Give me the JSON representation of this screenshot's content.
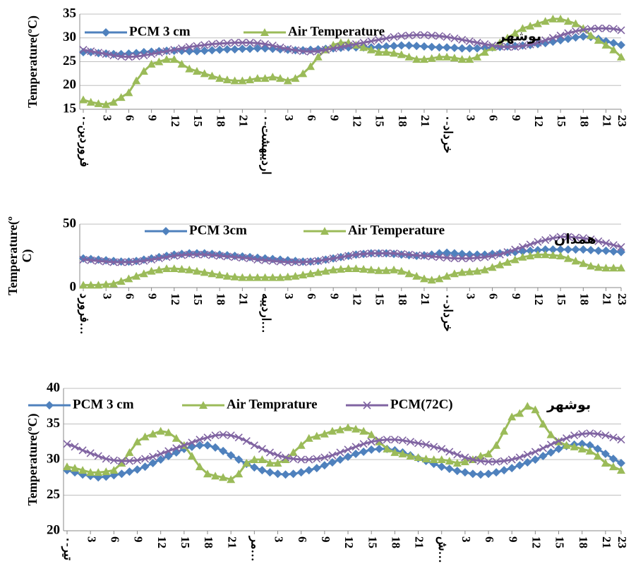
{
  "chart_data": [
    {
      "type": "line",
      "y_label": [
        "Temperature(ºC)"
      ],
      "annotation": "بوشهر",
      "ylim": [
        15,
        35
      ],
      "yticks": [
        15,
        20,
        25,
        30,
        35
      ],
      "grid": true,
      "categories": [
        "فروردین-۰",
        null,
        null,
        "3",
        null,
        null,
        "6",
        null,
        null,
        "9",
        null,
        null,
        "12",
        null,
        null,
        "15",
        null,
        null,
        "18",
        null,
        null,
        "21",
        null,
        null,
        "اردیبهشت-۰",
        null,
        null,
        "3",
        null,
        null,
        "6",
        null,
        null,
        "9",
        null,
        null,
        "12",
        null,
        null,
        "15",
        null,
        null,
        "18",
        null,
        null,
        "21",
        null,
        null,
        "خرداد-۰",
        null,
        null,
        "3",
        null,
        null,
        "6",
        null,
        null,
        "9",
        null,
        null,
        "12",
        null,
        null,
        "15",
        null,
        null,
        "18",
        null,
        null,
        "21",
        null,
        "23"
      ],
      "series": [
        {
          "name": "PCM 3 cm",
          "color": "#4f81bd",
          "marker": "diamond",
          "values": [
            27,
            27,
            26.8,
            26.7,
            26.6,
            26.6,
            26.7,
            26.8,
            27,
            27.1,
            27.2,
            27.3,
            27.3,
            27.3,
            27.2,
            27.2,
            27.3,
            27.4,
            27.5,
            27.6,
            27.6,
            27.7,
            27.7,
            27.8,
            27.8,
            27.7,
            27.6,
            27.5,
            27.4,
            27.4,
            27.5,
            27.6,
            27.7,
            27.8,
            27.9,
            28,
            28,
            28,
            28,
            28.1,
            28.2,
            28.3,
            28.4,
            28.4,
            28.3,
            28.2,
            28.1,
            28,
            28,
            27.9,
            27.8,
            27.8,
            27.8,
            27.9,
            28,
            28.1,
            28.2,
            28.3,
            28.4,
            28.5,
            28.7,
            28.9,
            29.2,
            29.5,
            29.8,
            30.1,
            30.3,
            30.2,
            29.8,
            29.3,
            28.9,
            28.5
          ]
        },
        {
          "name": "Air Temperature",
          "color": "#9bbb59",
          "marker": "triangle",
          "values": [
            17,
            16.5,
            16.2,
            16,
            16.5,
            17.5,
            18.5,
            21,
            23,
            24.5,
            25,
            25.5,
            25.5,
            24.5,
            23.5,
            23,
            22.5,
            22,
            21.5,
            21.2,
            21,
            21,
            21.2,
            21.5,
            21.5,
            21.8,
            21.5,
            21,
            21.5,
            22.5,
            24,
            26,
            27.5,
            28.5,
            29,
            29,
            28.5,
            28,
            27.5,
            27,
            27,
            26.8,
            26.5,
            26,
            25.5,
            25.5,
            25.7,
            26,
            26,
            25.8,
            25.5,
            25.5,
            26,
            27,
            28,
            29,
            30,
            31,
            32,
            32.5,
            33,
            33.5,
            34,
            34,
            33.5,
            33,
            32,
            30.5,
            29.5,
            28.5,
            27.5,
            26
          ]
        },
        {
          "color": "#8064a2",
          "marker": "x",
          "values": [
            27.5,
            27.2,
            26.9,
            26.6,
            26.3,
            26.1,
            26,
            26.1,
            26.3,
            26.6,
            26.9,
            27.2,
            27.5,
            27.8,
            28.1,
            28.3,
            28.5,
            28.7,
            28.8,
            28.9,
            29,
            29,
            29,
            28.9,
            28.7,
            28.4,
            28,
            27.7,
            27.4,
            27.2,
            27.1,
            27.2,
            27.5,
            27.8,
            28.1,
            28.4,
            28.7,
            29,
            29.3,
            29.6,
            29.9,
            30.2,
            30.4,
            30.5,
            30.6,
            30.6,
            30.5,
            30.4,
            30.2,
            29.9,
            29.6,
            29.3,
            29,
            28.7,
            28.4,
            28.2,
            28.1,
            28.1,
            28.3,
            28.6,
            29,
            29.5,
            30,
            30.5,
            31,
            31.4,
            31.7,
            31.9,
            32,
            32,
            31.9,
            31.6
          ]
        }
      ]
    },
    {
      "type": "line",
      "y_label": [
        "Temperature(º",
        "C)"
      ],
      "annotation": "همدان",
      "ylim": [
        0,
        50
      ],
      "yticks": [
        0,
        50
      ],
      "grid": true,
      "categories": [
        "فرورد…",
        null,
        null,
        "3",
        null,
        null,
        "6",
        null,
        null,
        "9",
        null,
        null,
        "12",
        null,
        null,
        "15",
        null,
        null,
        "18",
        null,
        null,
        "21",
        null,
        null,
        "اردیبه…",
        null,
        null,
        "3",
        null,
        null,
        "6",
        null,
        null,
        "9",
        null,
        null,
        "12",
        null,
        null,
        "15",
        null,
        null,
        "18",
        null,
        null,
        "21",
        null,
        null,
        "خرداد-۰",
        null,
        null,
        "3",
        null,
        null,
        "6",
        null,
        null,
        "9",
        null,
        null,
        "12",
        null,
        null,
        "15",
        null,
        null,
        "18",
        null,
        null,
        "21",
        null,
        "23"
      ],
      "series": [
        {
          "name": "PCM 3cm",
          "color": "#4f81bd",
          "marker": "diamond",
          "values": [
            23,
            22.5,
            22,
            21.5,
            21,
            20.5,
            20.5,
            21,
            22,
            23,
            24,
            25,
            26,
            26.5,
            27,
            27,
            27,
            26.5,
            26,
            25.5,
            25,
            24.5,
            24,
            23.5,
            23,
            22.5,
            22,
            21.5,
            21,
            20.5,
            20.5,
            21,
            22,
            23,
            24,
            25,
            26,
            26.5,
            27,
            27,
            27,
            26.5,
            26,
            25.5,
            25,
            25.5,
            26,
            27,
            27.5,
            27,
            26.5,
            26,
            26,
            26,
            26.5,
            27,
            27.5,
            28,
            28.5,
            29,
            29.5,
            30,
            30,
            30,
            30,
            30,
            30,
            29.5,
            29,
            29,
            28.5,
            28
          ]
        },
        {
          "name": "Air Temperature",
          "color": "#9bbb59",
          "marker": "triangle",
          "values": [
            2,
            2,
            2,
            2.5,
            3,
            5,
            7,
            9,
            11,
            13,
            14,
            15,
            15,
            14.5,
            14,
            13,
            12,
            11,
            10,
            9,
            8.5,
            8,
            8,
            8,
            8,
            8,
            8,
            8.5,
            9,
            10,
            11,
            12,
            13,
            14,
            14.5,
            15,
            15,
            14.5,
            14,
            13.5,
            13.5,
            14,
            13,
            11,
            9,
            7,
            6,
            7,
            9,
            11,
            12,
            12.5,
            13,
            14,
            16,
            18,
            20,
            22,
            24,
            25,
            26,
            26,
            25.5,
            25,
            23,
            21,
            19,
            17,
            16,
            15.5,
            15.5,
            15.5
          ]
        },
        {
          "color": "#8064a2",
          "marker": "x",
          "values": [
            22,
            21.5,
            21,
            20.5,
            20,
            20,
            20,
            20.5,
            21,
            22,
            23,
            24,
            25,
            25.5,
            26,
            26,
            26,
            25.5,
            25,
            24.5,
            24,
            23.5,
            23,
            22,
            21.5,
            21,
            20.5,
            20,
            20,
            20,
            20.5,
            21,
            22,
            23,
            24,
            25,
            26,
            26.5,
            27,
            27,
            27,
            27,
            26.5,
            26,
            25.5,
            25,
            24.5,
            24,
            23.5,
            23,
            23,
            23,
            23.5,
            24,
            25,
            26,
            28,
            30,
            32,
            34,
            36,
            37.5,
            39,
            40,
            40,
            39.5,
            39,
            38,
            36.5,
            35,
            33.5,
            32
          ]
        }
      ]
    },
    {
      "type": "line",
      "y_label": [
        "Temperature(ºC)"
      ],
      "annotation": "بوشهر",
      "ylim": [
        20,
        40
      ],
      "yticks": [
        20,
        25,
        30,
        35,
        40
      ],
      "grid": true,
      "categories": [
        "تیر-۰",
        null,
        null,
        "3",
        null,
        null,
        "6",
        null,
        null,
        "9",
        null,
        null,
        "12",
        null,
        null,
        "15",
        null,
        null,
        "18",
        null,
        null,
        "21",
        null,
        null,
        "مر…",
        null,
        null,
        "3",
        null,
        null,
        "6",
        null,
        null,
        "9",
        null,
        null,
        "12",
        null,
        null,
        "15",
        null,
        null,
        "18",
        null,
        null,
        "21",
        null,
        null,
        "ش…",
        null,
        null,
        "3",
        null,
        null,
        "6",
        null,
        null,
        "9",
        null,
        null,
        "12",
        null,
        null,
        "15",
        null,
        null,
        "18",
        null,
        null,
        "21",
        null,
        "23"
      ],
      "series": [
        {
          "name": "PCM 3 cm",
          "color": "#4f81bd",
          "marker": "diamond",
          "values": [
            28.5,
            28.2,
            27.9,
            27.7,
            27.5,
            27.6,
            27.8,
            28,
            28.3,
            28.6,
            29,
            29.5,
            30,
            30.5,
            31,
            31.5,
            31.8,
            32,
            32,
            31.7,
            31.2,
            30.6,
            30,
            29.4,
            28.9,
            28.5,
            28.2,
            28,
            27.9,
            28,
            28.2,
            28.5,
            28.8,
            29.2,
            29.6,
            30,
            30.4,
            30.8,
            31.1,
            31.4,
            31.5,
            31.5,
            31.3,
            31,
            30.6,
            30.2,
            29.8,
            29.4,
            29,
            28.7,
            28.4,
            28.2,
            28,
            27.9,
            28,
            28.2,
            28.5,
            28.8,
            29.2,
            29.6,
            30,
            30.5,
            31,
            31.5,
            31.9,
            32.1,
            32.2,
            32,
            31.5,
            30.8,
            30.1,
            29.5
          ]
        },
        {
          "name": "Air Temprature",
          "color": "#9bbb59",
          "marker": "triangle",
          "values": [
            29,
            28.8,
            28.5,
            28.2,
            28.2,
            28.3,
            28.5,
            29.5,
            31,
            32.5,
            33.2,
            33.6,
            34,
            33.8,
            33,
            32,
            30.5,
            29,
            28,
            27.7,
            27.5,
            27.2,
            28,
            29.5,
            30,
            30,
            29.5,
            29.5,
            30,
            31,
            32,
            33,
            33.3,
            33.6,
            34,
            34.2,
            34.5,
            34.3,
            34,
            33.5,
            32.5,
            31.5,
            31,
            30.8,
            30.5,
            30.3,
            30.1,
            30,
            30,
            29.8,
            29.5,
            29.7,
            30,
            30.5,
            30.8,
            32,
            34,
            36,
            36.5,
            37.5,
            37,
            35,
            33.5,
            32.5,
            32,
            31.8,
            31.5,
            31.2,
            30.5,
            29.5,
            29,
            28.5
          ]
        },
        {
          "name": "PCM(72C)",
          "color": "#8064a2",
          "marker": "x",
          "values": [
            32.2,
            31.8,
            31.3,
            30.9,
            30.5,
            30.1,
            29.9,
            29.8,
            29.8,
            29.9,
            30.1,
            30.4,
            30.8,
            31.2,
            31.6,
            32,
            32.4,
            32.8,
            33.1,
            33.4,
            33.5,
            33.4,
            33.1,
            32.6,
            32,
            31.5,
            31,
            30.6,
            30.3,
            30.1,
            30,
            30,
            30.1,
            30.3,
            30.6,
            31,
            31.4,
            31.8,
            32.2,
            32.5,
            32.7,
            32.8,
            32.8,
            32.7,
            32.5,
            32.3,
            32.1,
            31.8,
            31.5,
            31.1,
            30.7,
            30.3,
            30,
            29.8,
            29.7,
            29.7,
            29.8,
            30,
            30.3,
            30.7,
            31.1,
            31.6,
            32.1,
            32.6,
            33,
            33.4,
            33.6,
            33.7,
            33.6,
            33.4,
            33.1,
            32.8
          ]
        }
      ]
    }
  ]
}
